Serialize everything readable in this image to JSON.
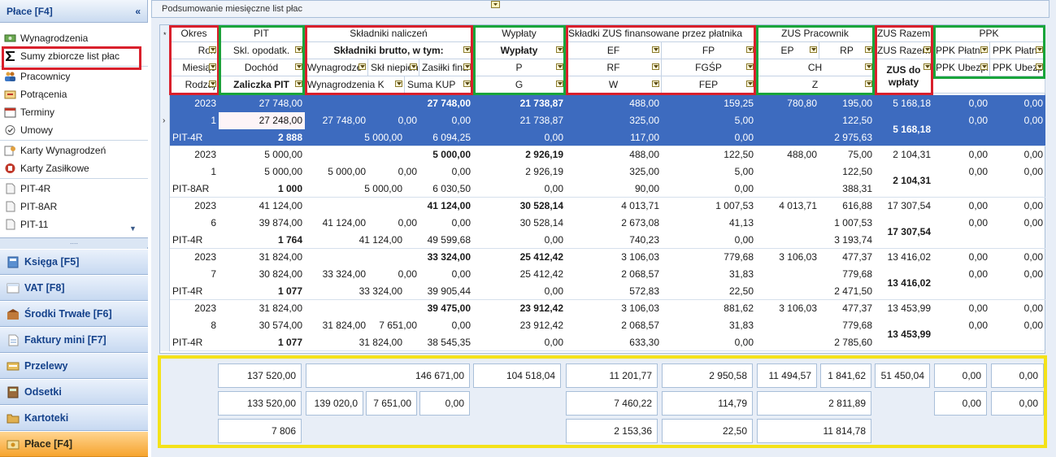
{
  "sidebar": {
    "title": "Płace [F4]",
    "collapse_icon": "«",
    "items": [
      {
        "label": "Wynagrodzenia",
        "icon": "money-icon"
      },
      {
        "label": "Sumy zbiorcze list płac",
        "icon": "sigma-icon"
      },
      {
        "label": "Pracownicy",
        "icon": "people-icon"
      },
      {
        "label": "Potrącenia",
        "icon": "deduction-icon"
      },
      {
        "label": "Terminy",
        "icon": "calendar-icon"
      },
      {
        "label": "Umowy",
        "icon": "contract-icon"
      },
      {
        "label": "Karty Wynagrodzeń",
        "icon": "card-icon"
      },
      {
        "label": "Karty Zasiłkowe",
        "icon": "benefit-card-icon"
      },
      {
        "label": "PIT-4R",
        "icon": "document-icon"
      },
      {
        "label": "PIT-8AR",
        "icon": "document-icon"
      },
      {
        "label": "PIT-11",
        "icon": "document-icon"
      }
    ],
    "grip": "....",
    "modules": [
      {
        "label": "Księga [F5]"
      },
      {
        "label": "VAT [F8]"
      },
      {
        "label": "Środki Trwałe [F6]"
      },
      {
        "label": "Faktury mini [F7]"
      },
      {
        "label": "Przelewy"
      },
      {
        "label": "Odsetki"
      },
      {
        "label": "Kartoteki"
      },
      {
        "label": "Płace [F4]"
      }
    ]
  },
  "panel": {
    "title": "Podsumowanie miesięczne list płac"
  },
  "grid": {
    "groups": [
      "Okres",
      "PIT",
      "Składniki naliczeń",
      "Wypłaty",
      "Składki ZUS finansowane przez płatnika",
      "ZUS Pracownik",
      "ZUS Razem",
      "PPK"
    ],
    "sub": {
      "okres": [
        "Rok",
        "Miesiąc",
        "Rodzaj"
      ],
      "pit": [
        "Skl. opodatk.",
        "Dochód",
        "Zaliczka PIT"
      ],
      "skl1": "Składniki brutto, w tym:",
      "skl2": [
        "Wynagrodze",
        "Skł niepien",
        "Zasiłki fina"
      ],
      "skl3": [
        "Wynagrodzenia K",
        "Suma KUP"
      ],
      "wyp": [
        "Wypłaty",
        "P",
        "G"
      ],
      "zus1": [
        "EF",
        "FP"
      ],
      "zus2": [
        "RF",
        "FGŚP"
      ],
      "zus3": [
        "W",
        "FEP"
      ],
      "zp1": [
        "EP",
        "RP"
      ],
      "zp2": "CH",
      "zp3": "Z",
      "zr1": "ZUS Razem",
      "zr2": "ZUS do wpłaty",
      "ppk1": [
        "PPK Płatni",
        "PPK Płatn"
      ],
      "ppk2": [
        "PPK Ubezpi",
        "PPK Ubezp"
      ]
    },
    "records": [
      {
        "rok": "2023",
        "mies": "1",
        "rodzaj": "PIT-4R",
        "r1": [
          "27 748,00",
          "27 748,00",
          "21 738,87",
          "488,00",
          "159,25",
          "780,80",
          "195,00",
          "5 168,18",
          "0,00",
          "0,00"
        ],
        "r2": [
          "27 248,00",
          "27 748,00",
          "0,00",
          "0,00",
          "21 738,87",
          "325,00",
          "5,00",
          "122,50",
          "0,00",
          "0,00"
        ],
        "r3": [
          "2 888",
          "5 000,00",
          "6 094,25",
          "0,00",
          "117,00",
          "0,00",
          "2 975,63"
        ],
        "zus_wpl": "5 168,18"
      },
      {
        "rok": "2023",
        "mies": "1",
        "rodzaj": "PIT-8AR",
        "r1": [
          "5 000,00",
          "5 000,00",
          "2 926,19",
          "488,00",
          "122,50",
          "488,00",
          "75,00",
          "2 104,31",
          "0,00",
          "0,00"
        ],
        "r2": [
          "5 000,00",
          "5 000,00",
          "0,00",
          "0,00",
          "2 926,19",
          "325,00",
          "5,00",
          "122,50",
          "0,00",
          "0,00"
        ],
        "r3": [
          "1 000",
          "5 000,00",
          "6 030,50",
          "0,00",
          "90,00",
          "0,00",
          "388,31"
        ],
        "zus_wpl": "2 104,31"
      },
      {
        "rok": "2023",
        "mies": "6",
        "rodzaj": "PIT-4R",
        "r1": [
          "41 124,00",
          "41 124,00",
          "30 528,14",
          "4 013,71",
          "1 007,53",
          "4 013,71",
          "616,88",
          "17 307,54",
          "0,00",
          "0,00"
        ],
        "r2": [
          "39 874,00",
          "41 124,00",
          "0,00",
          "0,00",
          "30 528,14",
          "2 673,08",
          "41,13",
          "1 007,53",
          "0,00",
          "0,00"
        ],
        "r3": [
          "1 764",
          "41 124,00",
          "49 599,68",
          "0,00",
          "740,23",
          "0,00",
          "3 193,74"
        ],
        "zus_wpl": "17 307,54"
      },
      {
        "rok": "2023",
        "mies": "7",
        "rodzaj": "PIT-4R",
        "r1": [
          "31 824,00",
          "33 324,00",
          "25 412,42",
          "3 106,03",
          "779,68",
          "3 106,03",
          "477,37",
          "13 416,02",
          "0,00",
          "0,00"
        ],
        "r2": [
          "30 824,00",
          "33 324,00",
          "0,00",
          "0,00",
          "25 412,42",
          "2 068,57",
          "31,83",
          "779,68",
          "0,00",
          "0,00"
        ],
        "r3": [
          "1 077",
          "33 324,00",
          "39 905,44",
          "0,00",
          "572,83",
          "22,50",
          "2 471,50"
        ],
        "zus_wpl": "13 416,02"
      },
      {
        "rok": "2023",
        "mies": "8",
        "rodzaj": "PIT-4R",
        "r1": [
          "31 824,00",
          "39 475,00",
          "23 912,42",
          "3 106,03",
          "881,62",
          "3 106,03",
          "477,37",
          "13 453,99",
          "0,00",
          "0,00"
        ],
        "r2": [
          "30 574,00",
          "31 824,00",
          "7 651,00",
          "0,00",
          "23 912,42",
          "2 068,57",
          "31,83",
          "779,68",
          "0,00",
          "0,00"
        ],
        "r3": [
          "1 077",
          "31 824,00",
          "38 545,35",
          "0,00",
          "633,30",
          "0,00",
          "2 785,60"
        ],
        "zus_wpl": "13 453,99"
      }
    ]
  },
  "summary": {
    "row1": [
      "137 520,00",
      "146 671,00",
      "104 518,04",
      "11 201,77",
      "2 950,58",
      "11 494,57",
      "1 841,62",
      "51 450,04",
      "0,00",
      "0,00"
    ],
    "row2": [
      "133 520,00",
      "139 020,0",
      "7 651,00",
      "0,00",
      "7 460,22",
      "114,79",
      "2 811,89",
      "0,00",
      "0,00"
    ],
    "row3": [
      "7 806",
      "2 153,36",
      "22,50",
      "11 814,78"
    ]
  },
  "colors": {
    "selection": "#3d6bbf",
    "red_box": "#d9202c",
    "green_box": "#19a53b",
    "yellow_box": "#f4e21a"
  }
}
